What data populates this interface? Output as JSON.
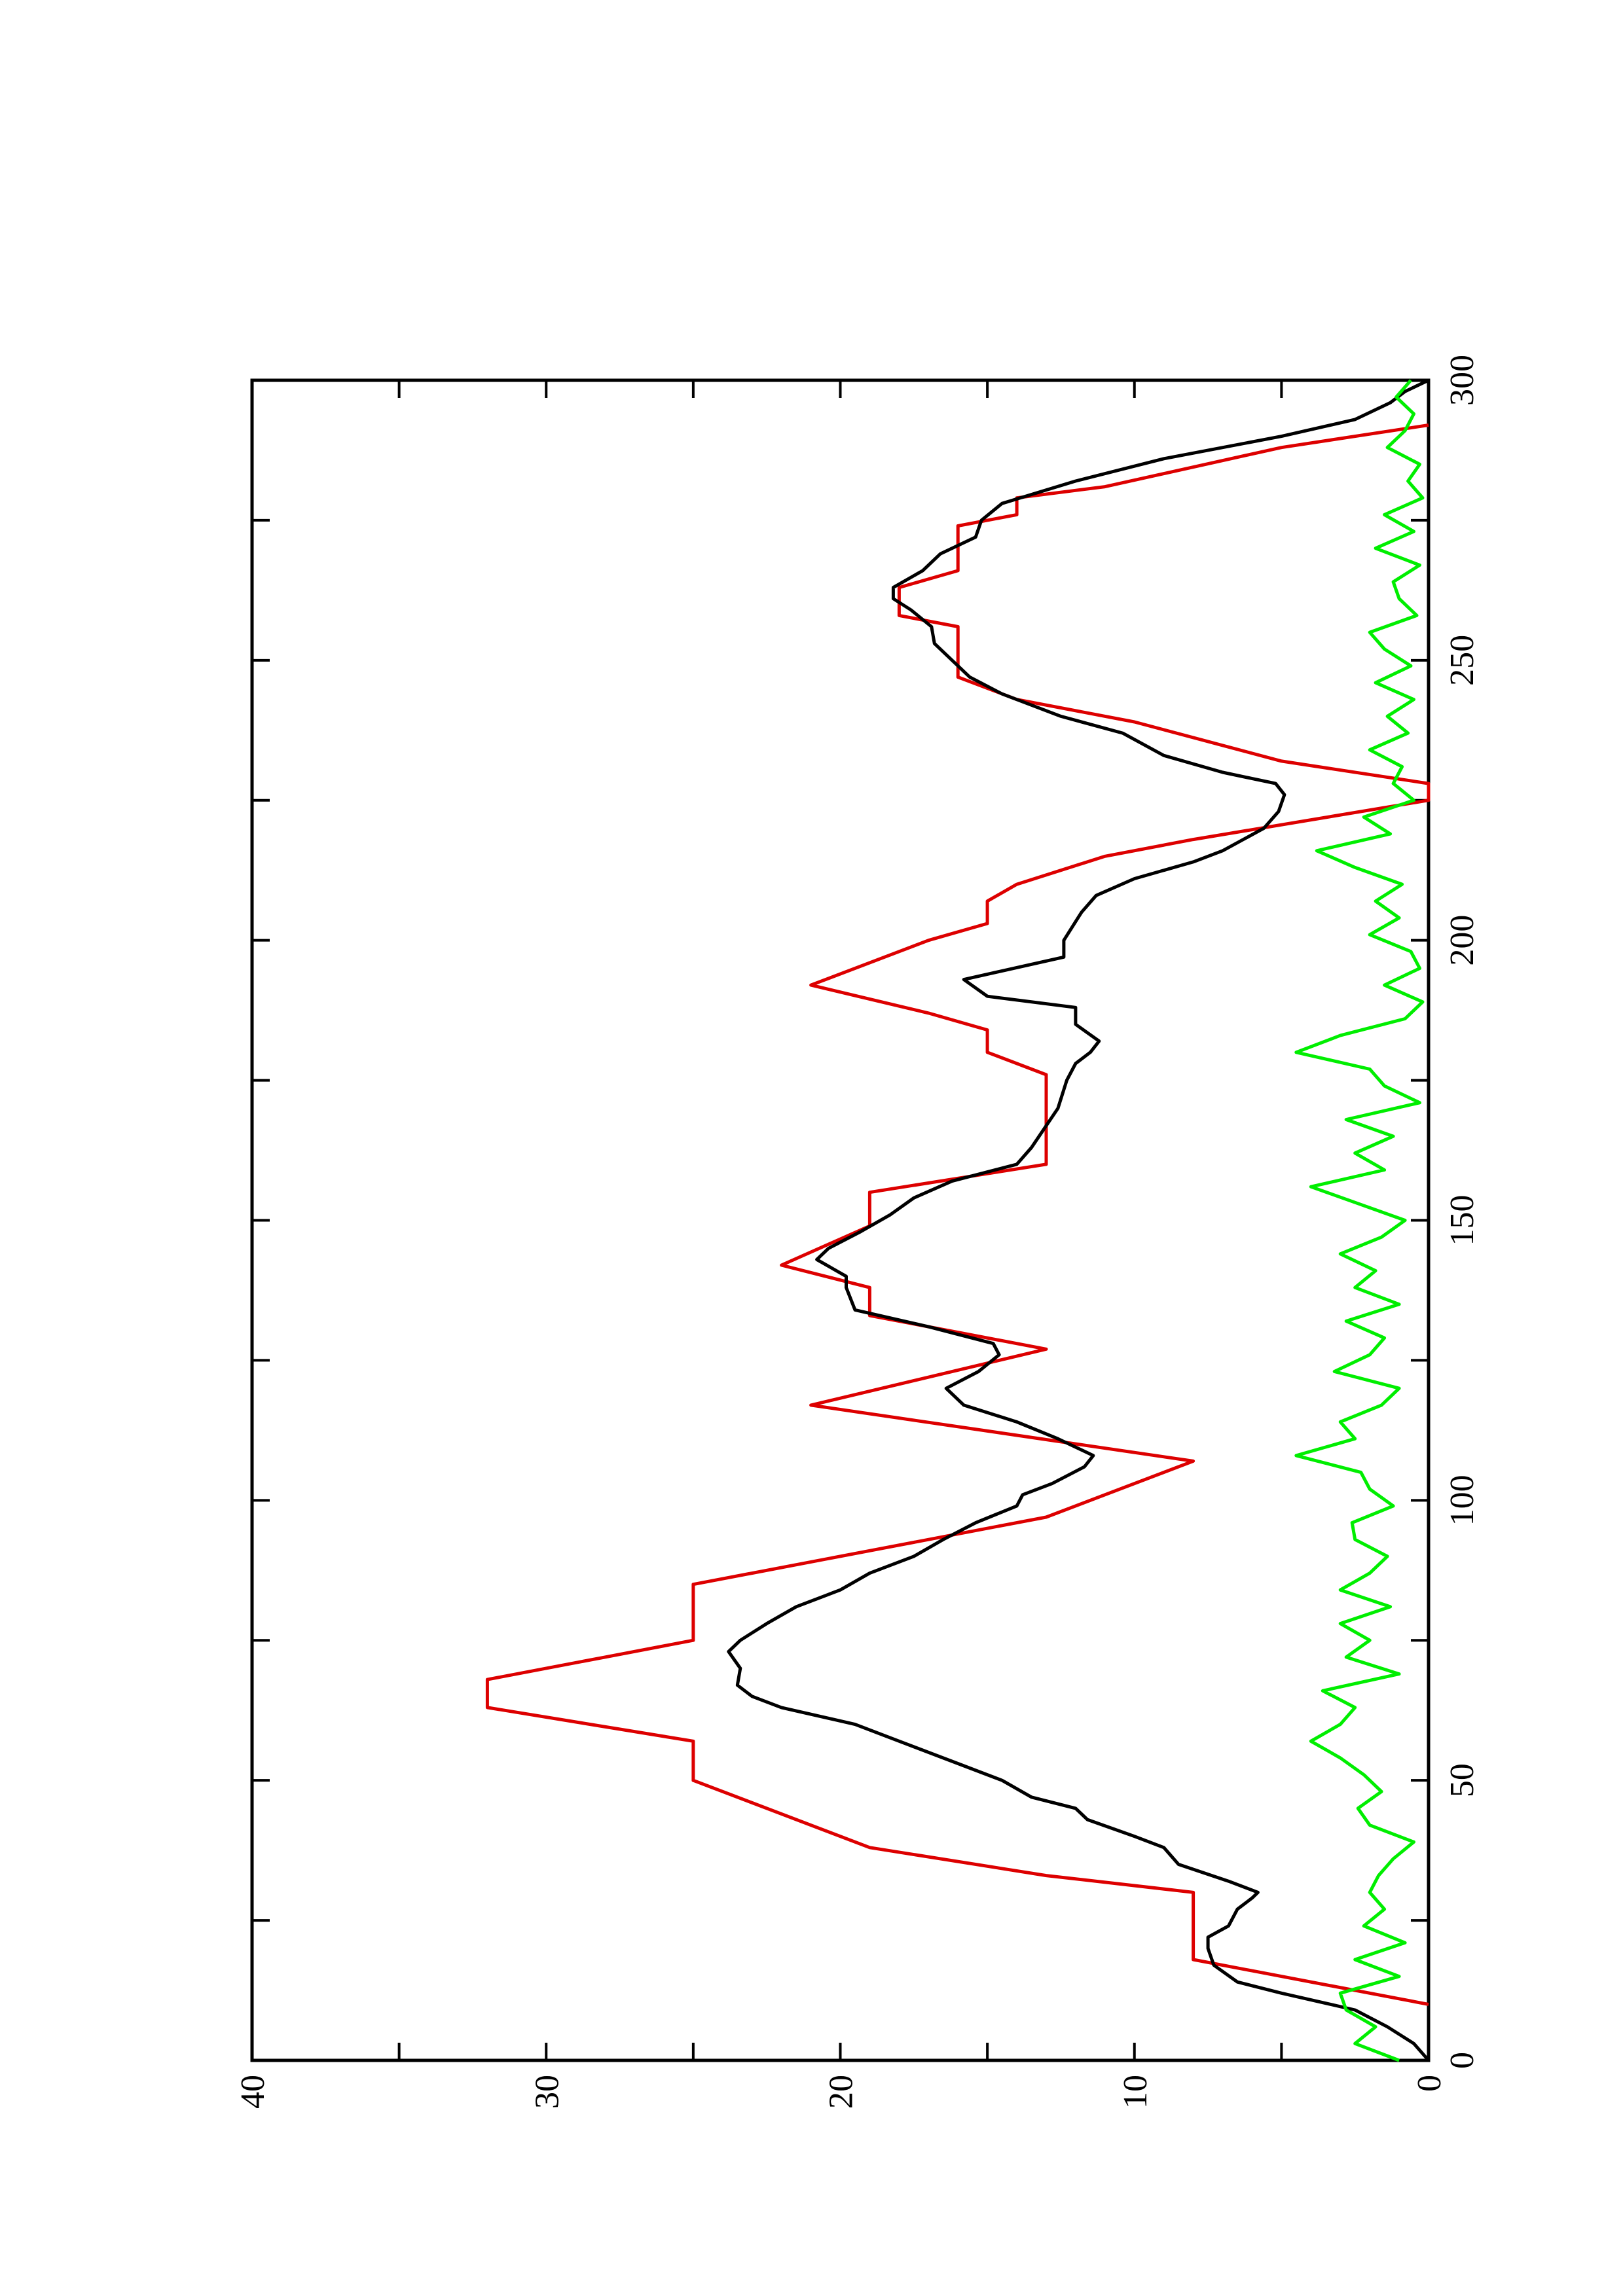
{
  "chart_data": {
    "type": "line",
    "xlim": [
      0,
      300
    ],
    "xticks": [
      0,
      50,
      100,
      150,
      200,
      250,
      300
    ],
    "xminorticks": [
      25,
      75,
      125,
      175,
      225,
      275
    ],
    "ylim": [
      0,
      40
    ],
    "yticks": [
      0,
      10,
      20,
      30,
      40
    ],
    "yminorticks": [
      5,
      15,
      25,
      35
    ],
    "series": [
      {
        "color": "#dd0000",
        "x": [
          10,
          16,
          18,
          30,
          33,
          38,
          50,
          57,
          63,
          68,
          72,
          75,
          85,
          91,
          97,
          107,
          117,
          127,
          133,
          138,
          142,
          149,
          155,
          160,
          176,
          180,
          184,
          187,
          192,
          198,
          200,
          203,
          207,
          210,
          215,
          218,
          225,
          228,
          232,
          239,
          243,
          247,
          256,
          258,
          263,
          266,
          274,
          276,
          279,
          281,
          288,
          292
        ],
        "values": [
          0,
          6,
          8,
          8,
          13,
          19,
          25,
          25,
          32,
          32,
          28,
          25,
          25,
          19,
          13,
          8,
          21,
          13,
          19,
          19,
          22,
          19,
          19,
          13,
          13,
          15,
          15,
          17,
          21,
          18,
          17,
          15,
          15,
          14,
          11,
          8,
          0,
          0,
          5,
          10,
          14,
          16,
          16,
          18,
          18,
          16,
          16,
          14,
          14,
          11,
          5,
          0
        ]
      },
      {
        "color": "#000000",
        "x": [
          0,
          3,
          6,
          9,
          12,
          14,
          17,
          20,
          22,
          24,
          27,
          29,
          30,
          32,
          35,
          38,
          40,
          43,
          45,
          47,
          50,
          53,
          57,
          60,
          63,
          65,
          67,
          70,
          73,
          75,
          78,
          81,
          83,
          84,
          87,
          90,
          93,
          96,
          99,
          101,
          103,
          106,
          108,
          111,
          114,
          117,
          120,
          123,
          126,
          128,
          131,
          134,
          138,
          140,
          143,
          145,
          148,
          151,
          154,
          157,
          160,
          163,
          170,
          175,
          178,
          180,
          182,
          185,
          188,
          190,
          193,
          197,
          200,
          205,
          208,
          211,
          214,
          216,
          220,
          223,
          226,
          228,
          230,
          233,
          237,
          240,
          244,
          247,
          250,
          253,
          256,
          259,
          261,
          263,
          266,
          269,
          272,
          275,
          278,
          282,
          286,
          290,
          293,
          296,
          298,
          300
        ],
        "values": [
          0,
          0.5,
          1.4,
          2.5,
          5,
          6.5,
          7.3,
          7.5,
          7.5,
          6.8,
          6.5,
          6,
          5.8,
          6.8,
          8.5,
          9,
          10,
          11.6,
          12,
          13.5,
          14.5,
          16,
          18,
          19.5,
          22,
          23,
          23.5,
          23.4,
          23.8,
          23.4,
          22.5,
          21.5,
          20.5,
          20,
          19,
          17.5,
          16.5,
          15.4,
          14,
          13.8,
          12.8,
          11.7,
          11.4,
          12.6,
          14,
          15.8,
          16.4,
          15.3,
          14.6,
          14.8,
          17,
          19.5,
          19.8,
          19.8,
          20.8,
          20.4,
          19.3,
          18.3,
          17.5,
          16.2,
          14,
          13.5,
          12.6,
          12.3,
          12,
          11.5,
          11.2,
          12,
          12,
          15,
          15.8,
          12.4,
          12.4,
          11.8,
          11.3,
          10,
          8,
          7,
          5.6,
          5.1,
          4.9,
          5.2,
          7,
          9,
          10.4,
          12.5,
          14.5,
          15.6,
          16.2,
          16.8,
          16.9,
          17.6,
          18.2,
          18.2,
          17.2,
          16.6,
          15.4,
          15.2,
          14.5,
          12,
          9,
          5,
          2.5,
          1.3,
          0.8,
          0
        ]
      },
      {
        "color": "#00ee00",
        "x": [
          0,
          3,
          6,
          9,
          12,
          15,
          18,
          21,
          24,
          27,
          30,
          33,
          36,
          39,
          42,
          45,
          48,
          51,
          54,
          57,
          60,
          63,
          66,
          69,
          72,
          75,
          78,
          81,
          84,
          87,
          90,
          93,
          96,
          99,
          102,
          105,
          108,
          111,
          114,
          117,
          120,
          123,
          126,
          129,
          132,
          135,
          138,
          141,
          144,
          147,
          150,
          153,
          156,
          159,
          162,
          165,
          168,
          171,
          174,
          177,
          180,
          183,
          186,
          189,
          192,
          195,
          198,
          201,
          204,
          207,
          210,
          213,
          216,
          219,
          222,
          225,
          228,
          231,
          234,
          237,
          240,
          243,
          246,
          249,
          252,
          255,
          258,
          261,
          264,
          267,
          270,
          273,
          276,
          279,
          282,
          285,
          288,
          291,
          294,
          297,
          300
        ],
        "values": [
          1,
          2.5,
          1.8,
          2.8,
          3,
          1,
          2.5,
          0.8,
          2.2,
          1.5,
          2,
          1.7,
          1.2,
          0.5,
          2,
          2.4,
          1.6,
          2.2,
          3,
          4,
          3,
          2.5,
          3.6,
          1,
          2.8,
          2,
          3,
          1.3,
          3,
          2,
          1.4,
          2.5,
          2.6,
          1.2,
          2,
          2.3,
          4.5,
          2.5,
          3,
          1.6,
          1,
          3.2,
          2,
          1.5,
          2.8,
          1,
          2.5,
          1.8,
          3,
          1.6,
          0.8,
          2.4,
          4,
          1.5,
          2.5,
          1.2,
          2.8,
          0.3,
          1.5,
          2,
          4.5,
          3,
          0.8,
          0.2,
          1.5,
          0.3,
          0.6,
          2,
          1,
          1.8,
          0.9,
          2.5,
          3.8,
          1.3,
          2.2,
          0.5,
          1.2,
          0.9,
          2,
          0.7,
          1.4,
          0.5,
          1.8,
          0.6,
          1.5,
          2,
          0.4,
          1,
          1.2,
          0.3,
          1.8,
          0.5,
          1.5,
          0.2,
          0.7,
          0.3,
          1.4,
          0.8,
          0.5,
          1.1,
          0.6
        ]
      }
    ]
  }
}
